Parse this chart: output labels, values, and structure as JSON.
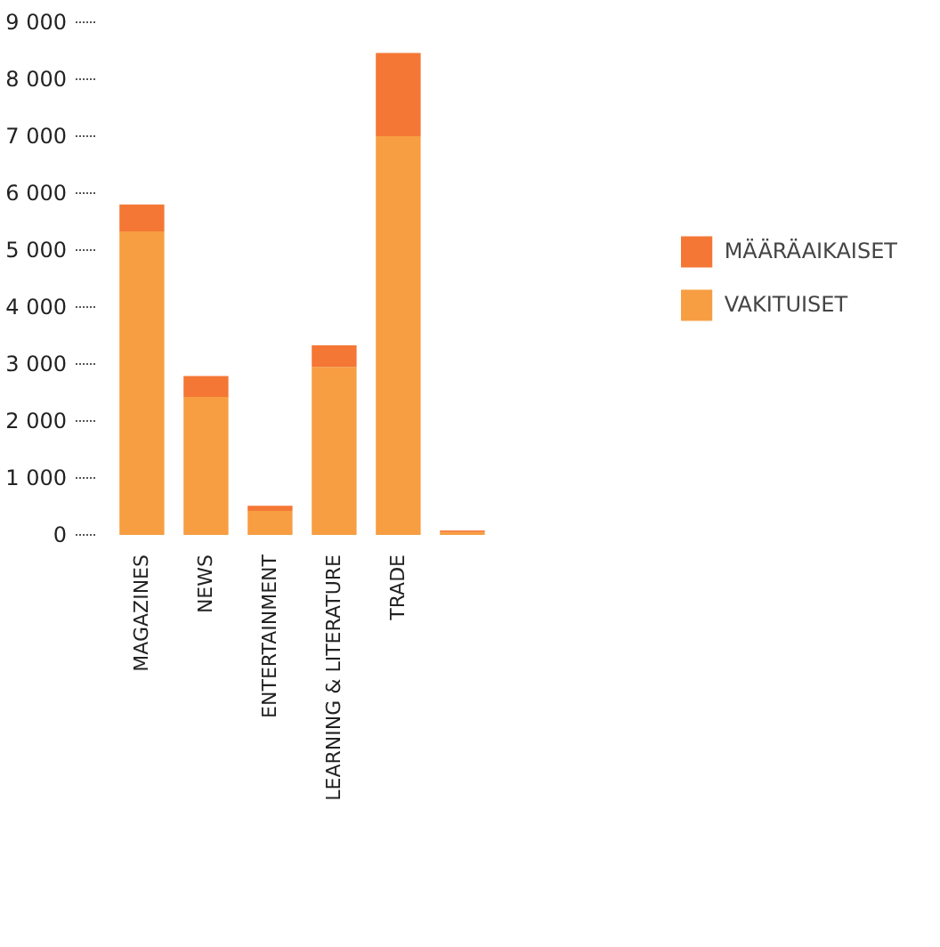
{
  "chart_data": {
    "type": "bar",
    "stacked": true,
    "categories": [
      "MAGAZINES",
      "NEWS",
      "ENTERTAINMENT",
      "LEARNING & LITERATURE",
      "TRADE",
      null
    ],
    "series": [
      {
        "name": "VAKITUISET",
        "color": "#f79e42",
        "values": [
          5330,
          2420,
          420,
          2950,
          7000,
          50
        ]
      },
      {
        "name": "MÄÄRÄAIKAISET",
        "color": "#f47735",
        "values": [
          470,
          370,
          90,
          380,
          1460,
          30
        ]
      }
    ],
    "ylim": [
      0,
      9000
    ],
    "yticks": [
      {
        "value": 0,
        "label": "0"
      },
      {
        "value": 1000,
        "label": "1 000"
      },
      {
        "value": 2000,
        "label": "2 000"
      },
      {
        "value": 3000,
        "label": "3 000"
      },
      {
        "value": 4000,
        "label": "4 000"
      },
      {
        "value": 5000,
        "label": "5 000"
      },
      {
        "value": 6000,
        "label": "6 000"
      },
      {
        "value": 7000,
        "label": "7 000"
      },
      {
        "value": 8000,
        "label": "8 000"
      },
      {
        "value": 9000,
        "label": "9 000"
      }
    ],
    "grid": false,
    "legend": "right"
  }
}
